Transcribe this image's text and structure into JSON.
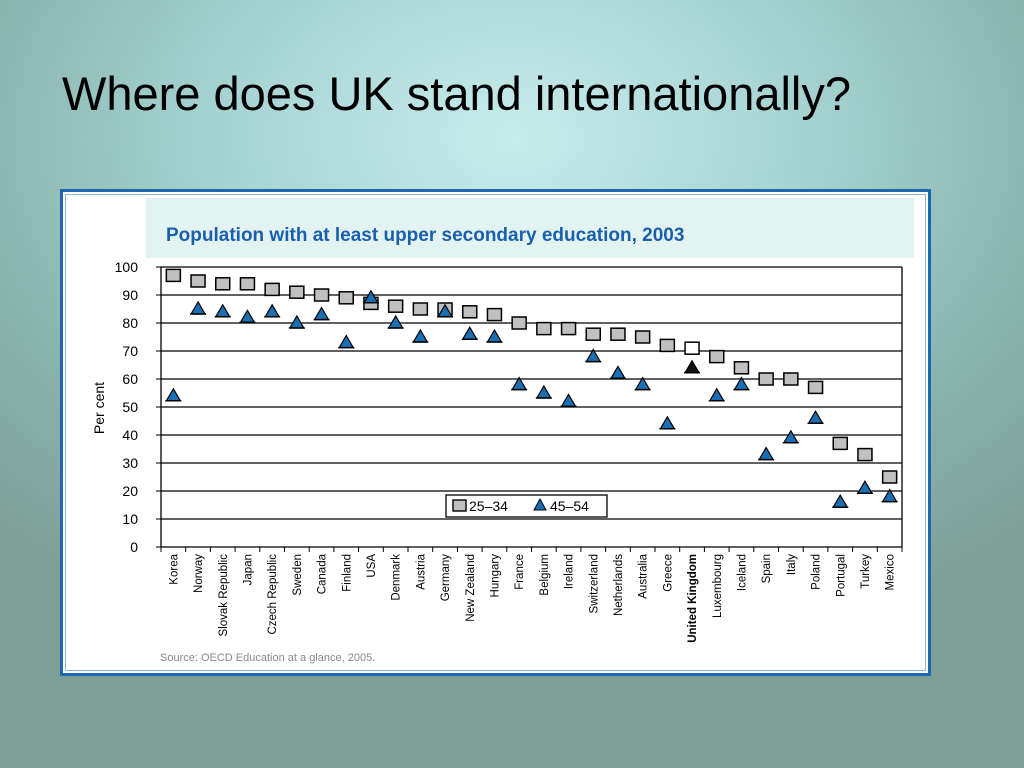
{
  "slide": {
    "title": "Where does UK stand internationally?"
  },
  "chart_data": {
    "type": "scatter",
    "title": "Population with at least upper secondary education, 2003",
    "ylabel": "Per cent",
    "xlabel": "",
    "ylim": [
      0,
      100
    ],
    "yticks": [
      0,
      10,
      20,
      30,
      40,
      50,
      60,
      70,
      80,
      90,
      100
    ],
    "grid": true,
    "legend_position": "bottom-center",
    "categories": [
      "Korea",
      "Norway",
      "Slovak Republic",
      "Japan",
      "Czech Republic",
      "Sweden",
      "Canada",
      "Finland",
      "USA",
      "Denmark",
      "Austria",
      "Germany",
      "New Zealand",
      "Hungary",
      "France",
      "Belgium",
      "Ireland",
      "Switzerland",
      "Netherlands",
      "Australia",
      "Greece",
      "United Kingdom",
      "Luxembourg",
      "Iceland",
      "Spain",
      "Italy",
      "Poland",
      "Portugal",
      "Turkey",
      "Mexico"
    ],
    "highlight_category": "United Kingdom",
    "series": [
      {
        "name": "25–34",
        "marker": "square",
        "color": "#c0c0c0",
        "values": [
          97,
          95,
          94,
          94,
          92,
          91,
          90,
          89,
          87,
          86,
          85,
          85,
          84,
          83,
          80,
          78,
          78,
          76,
          76,
          75,
          72,
          71,
          68,
          64,
          60,
          60,
          57,
          37,
          33,
          25
        ]
      },
      {
        "name": "45–54",
        "marker": "triangle",
        "color": "#1a6fb4",
        "values": [
          54,
          85,
          84,
          82,
          84,
          80,
          83,
          73,
          89,
          80,
          75,
          84,
          76,
          75,
          58,
          55,
          52,
          68,
          62,
          58,
          44,
          64,
          54,
          58,
          33,
          39,
          46,
          16,
          21,
          18
        ]
      }
    ],
    "source_note": "Source: OECD Education at a glance, 2005."
  }
}
